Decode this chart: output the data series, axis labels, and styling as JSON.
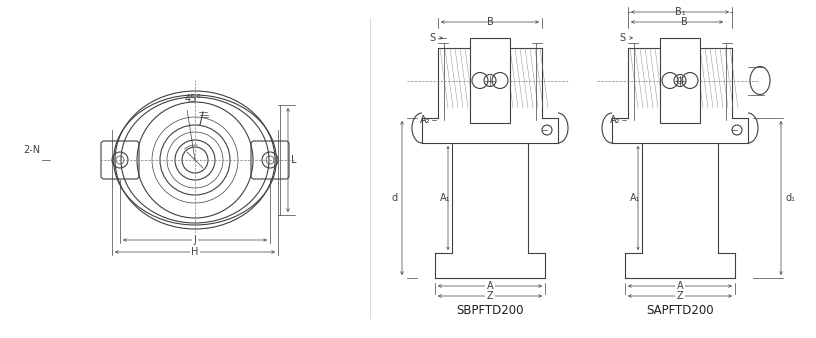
{
  "bg_color": "#ffffff",
  "line_color": "#404040",
  "dim_color": "#404040",
  "hatch_color": "#606060",
  "title": "",
  "label_45": "45°",
  "label_2N": "2-N",
  "label_L": "L",
  "label_J": "J",
  "label_H": "H",
  "label_d": "d",
  "label_B": "B",
  "label_S": "S",
  "label_A2": "A₂",
  "label_A1": "A₁",
  "label_A": "A",
  "label_Z": "Z",
  "label_B1": "B₁",
  "label_d1": "d₁",
  "label_sbp": "SBPFTD200",
  "label_sap": "SAPFTD200",
  "figsize": [
    8.16,
    3.38
  ],
  "dpi": 100
}
